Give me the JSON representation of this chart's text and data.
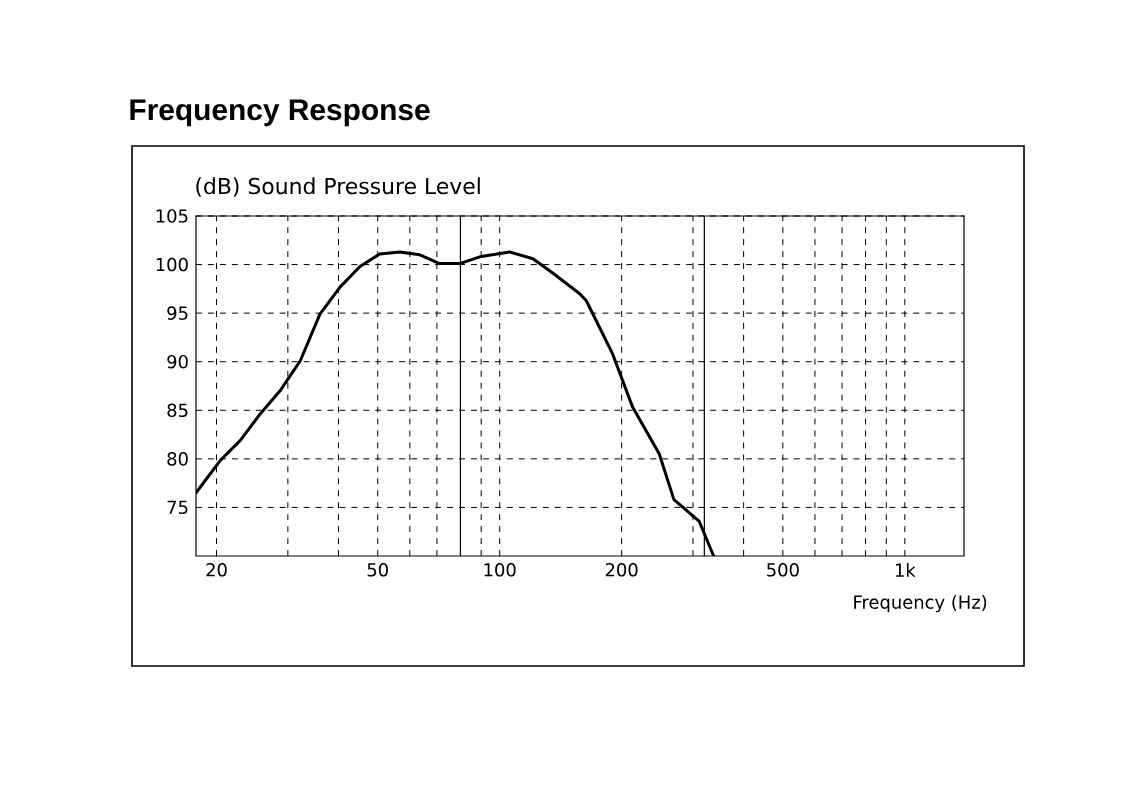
{
  "chart_data": {
    "type": "line",
    "title": "Frequency Response",
    "subtitle": "(dB) Sound Pressure Level",
    "xlabel": "Frequency (Hz)",
    "log": "x",
    "grid": true,
    "x": [
      17.8,
      20.4,
      22.9,
      25.6,
      28.7,
      32.2,
      36.0,
      40.4,
      45.2,
      50.6,
      56.7,
      63.5,
      71.1,
      79.7,
      89.3,
      105.8,
      120.8,
      135.4,
      157.6,
      163.5,
      190.0,
      213.0,
      247.7,
      269.2,
      310.5,
      337.4
    ],
    "series": [
      {
        "color": "#000000",
        "values": [
          76.5,
          79.8,
          81.9,
          84.6,
          87.0,
          90.1,
          94.9,
          97.7,
          99.8,
          101.1,
          101.3,
          101.0,
          100.1,
          100.1,
          100.8,
          101.3,
          100.6,
          99.1,
          97.0,
          96.3,
          90.8,
          85.3,
          80.5,
          75.8,
          73.6,
          70.0
        ]
      }
    ],
    "xlim": [
      17.8,
      1400
    ],
    "ylim": [
      70,
      105
    ],
    "xticks": [
      20,
      {
        "value": 30,
        "label": null
      },
      {
        "value": 40,
        "label": null
      },
      50,
      {
        "value": 60,
        "label": null
      },
      {
        "value": 70,
        "label": null
      },
      {
        "value": 80,
        "label": null
      },
      {
        "value": 90,
        "label": null
      },
      100,
      200,
      {
        "value": 300,
        "label": null
      },
      {
        "value": 400,
        "label": null
      },
      500,
      {
        "value": 600,
        "label": null
      },
      {
        "value": 700,
        "label": null
      },
      {
        "value": 800,
        "label": null
      },
      {
        "value": 900,
        "label": null
      },
      {
        "value": 1000,
        "label": "1k"
      }
    ],
    "yticks": [
      75,
      80,
      85,
      90,
      95,
      100,
      105
    ],
    "ref_lines": [
      {
        "axis": "x",
        "value": 80,
        "color": "#000000"
      },
      {
        "axis": "x",
        "value": 320,
        "color": "#000000"
      }
    ]
  }
}
